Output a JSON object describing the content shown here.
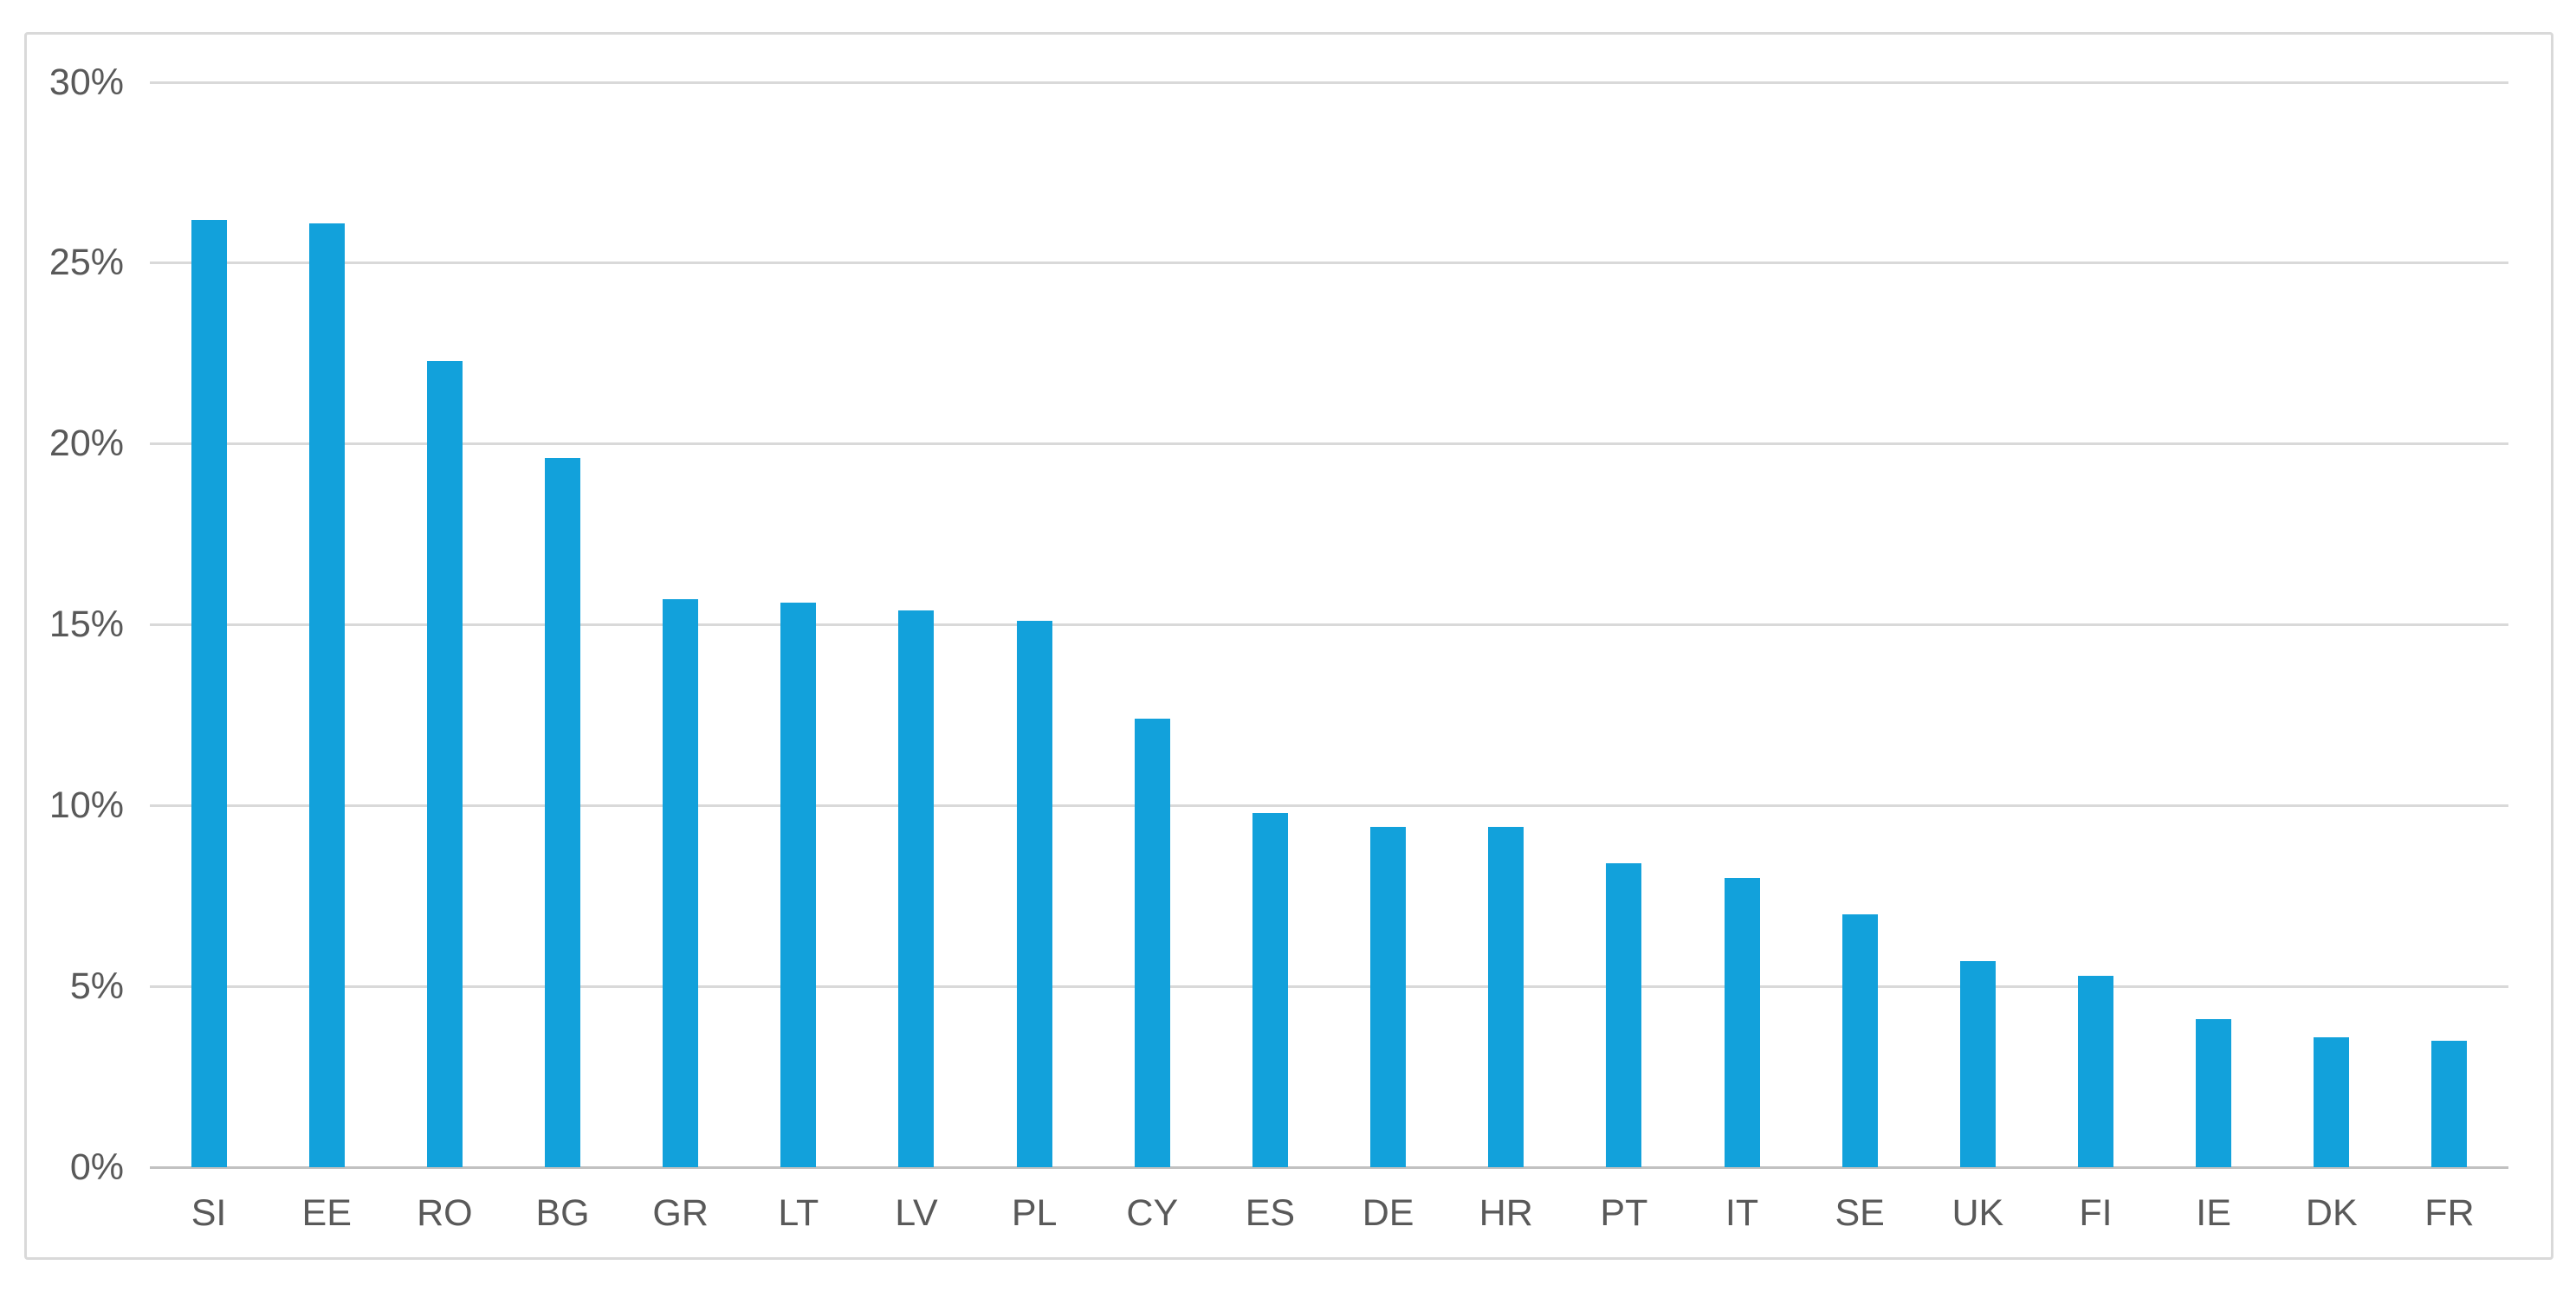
{
  "chart_data": {
    "type": "bar",
    "title": "",
    "xlabel": "",
    "ylabel": "",
    "categories": [
      "SI",
      "EE",
      "RO",
      "BG",
      "GR",
      "LT",
      "LV",
      "PL",
      "CY",
      "ES",
      "DE",
      "HR",
      "PT",
      "IT",
      "SE",
      "UK",
      "FI",
      "IE",
      "DK",
      "FR"
    ],
    "values": [
      26.2,
      26.1,
      22.3,
      19.6,
      15.7,
      15.6,
      15.4,
      15.1,
      12.4,
      9.8,
      9.4,
      9.4,
      8.4,
      8.0,
      7.0,
      5.7,
      5.3,
      4.1,
      3.6,
      3.5
    ],
    "value_unit": "%",
    "ylim": [
      0,
      30
    ],
    "y_ticks": [
      {
        "label": "30%",
        "value": 30
      },
      {
        "label": "25%",
        "value": 25
      },
      {
        "label": "20%",
        "value": 20
      },
      {
        "label": "15%",
        "value": 15
      },
      {
        "label": "10%",
        "value": 10
      },
      {
        "label": "5%",
        "value": 5
      },
      {
        "label": "0%",
        "value": 0
      }
    ],
    "grid": "horizontal",
    "legend": "none",
    "colors": {
      "bar_fill": "#12A1DB",
      "gridline": "#D9D9D9",
      "axis_line": "#C1C1C1",
      "tick_label": "#595959",
      "frame_border": "#D9D9D9",
      "background": "#FFFFFF"
    }
  }
}
